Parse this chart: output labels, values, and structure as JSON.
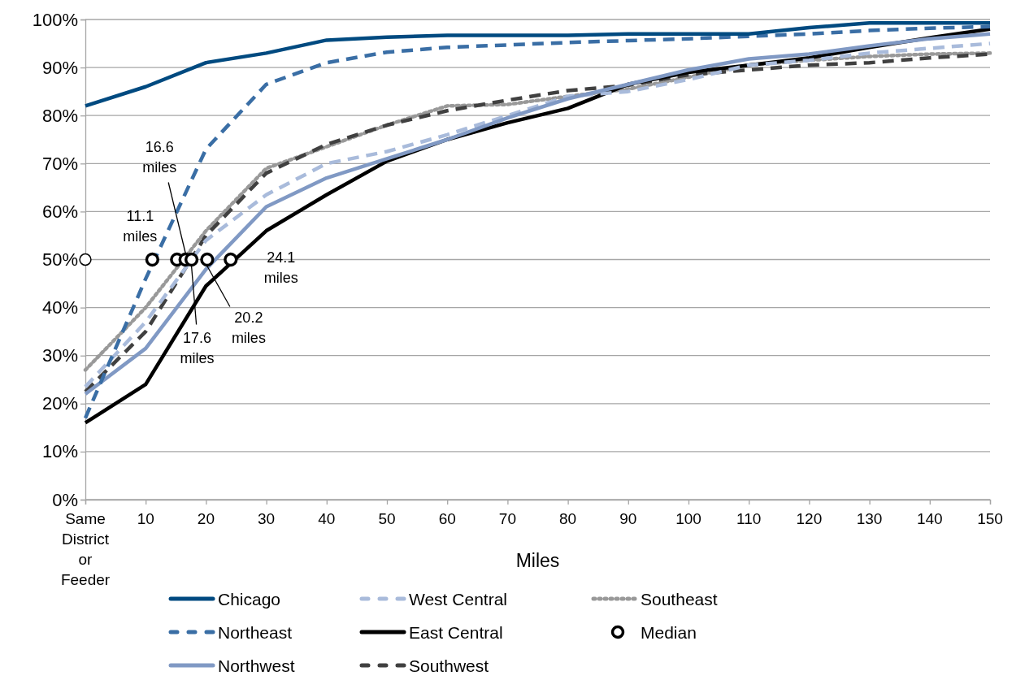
{
  "chart_data": {
    "type": "line",
    "xlabel": "Miles",
    "x": [
      0,
      10,
      20,
      30,
      40,
      50,
      60,
      70,
      80,
      90,
      100,
      110,
      120,
      130,
      140,
      150
    ],
    "xlim": [
      0,
      150
    ],
    "xticks": [
      {
        "value": 0,
        "label": "Same District or Feeder"
      },
      10,
      20,
      30,
      40,
      50,
      60,
      70,
      80,
      90,
      100,
      110,
      120,
      130,
      140,
      150
    ],
    "ylim": [
      0,
      100
    ],
    "yticks": [
      {
        "value": 0,
        "label": "0%"
      },
      {
        "value": 10,
        "label": "10%"
      },
      {
        "value": 20,
        "label": "20%"
      },
      {
        "value": 30,
        "label": "30%"
      },
      {
        "value": 40,
        "label": "40%"
      },
      {
        "value": 50,
        "label": "50%"
      },
      {
        "value": 60,
        "label": "60%"
      },
      {
        "value": 70,
        "label": "70%"
      },
      {
        "value": 80,
        "label": "80%"
      },
      {
        "value": 90,
        "label": "90%"
      },
      {
        "value": 100,
        "label": "100%"
      }
    ],
    "grid": "y",
    "legend": "bottom",
    "marker": "none",
    "series": [
      {
        "name": "Chicago",
        "color": "#004a80",
        "line_style": "solid",
        "values": [
          82,
          86,
          91,
          93,
          95.7,
          96.3,
          96.7,
          96.7,
          96.7,
          97,
          97,
          97,
          98.3,
          99.3,
          99.3,
          99.3
        ]
      },
      {
        "name": "Northeast",
        "color": "#3a6ea5",
        "line_style": "dashed",
        "values": [
          17,
          46,
          73,
          86.5,
          91,
          93.2,
          94.2,
          94.7,
          95.2,
          95.6,
          96,
          96.5,
          97,
          97.7,
          98.2,
          98.5
        ]
      },
      {
        "name": "Northwest",
        "color": "#8099c4",
        "line_style": "solid",
        "values": [
          22,
          31.5,
          48,
          61,
          67,
          71,
          75,
          79.5,
          83.5,
          86.5,
          89.5,
          91.8,
          92.8,
          94.5,
          96,
          97
        ]
      },
      {
        "name": "West Central",
        "color": "#a9bbdb",
        "line_style": "dashed",
        "values": [
          23.5,
          37,
          54,
          63.5,
          70,
          72.5,
          76,
          80,
          84,
          85,
          87.5,
          90.5,
          91.5,
          93,
          94,
          95
        ]
      },
      {
        "name": "East Central",
        "color": "#000000",
        "line_style": "solid",
        "values": [
          16,
          24,
          44.5,
          56,
          63.5,
          70.5,
          75,
          78.5,
          81.5,
          86.5,
          89,
          90.5,
          92,
          94.2,
          96.2,
          98
        ]
      },
      {
        "name": "Southwest",
        "color": "#404040",
        "line_style": "dashed",
        "values": [
          22.5,
          35,
          55,
          68,
          74,
          78,
          81,
          83.2,
          85.2,
          86.3,
          88.5,
          89.5,
          90.5,
          91,
          92,
          92.8
        ]
      },
      {
        "name": "Southeast",
        "color": "#999999",
        "line_style": "dotted",
        "values": [
          27,
          40,
          56,
          69,
          73.5,
          78,
          82,
          82.3,
          84,
          85.5,
          88,
          90.5,
          91.5,
          92.3,
          92.8,
          93
        ]
      },
      {
        "name": "Median",
        "type": "scatter",
        "marker": "circle",
        "color": "#000000",
        "x": [
          11.1,
          15.2,
          16.6,
          17.6,
          20.2,
          24.1
        ],
        "values": [
          50,
          50,
          50,
          50,
          50,
          50
        ]
      },
      {
        "type": "scatter",
        "marker": "circle",
        "color": "#000000",
        "x": [
          0
        ],
        "values": [
          50
        ]
      }
    ],
    "annotations": [
      {
        "text": "11.1 miles",
        "x": 11.1,
        "y": 50
      },
      {
        "text": "16.6 miles",
        "x": 16.6,
        "y": 50
      },
      {
        "text": "17.6 miles",
        "x": 17.6,
        "y": 50
      },
      {
        "text": "20.2 miles",
        "x": 20.2,
        "y": 50
      },
      {
        "text": "24.1 miles",
        "x": 24.1,
        "y": 50
      }
    ]
  }
}
